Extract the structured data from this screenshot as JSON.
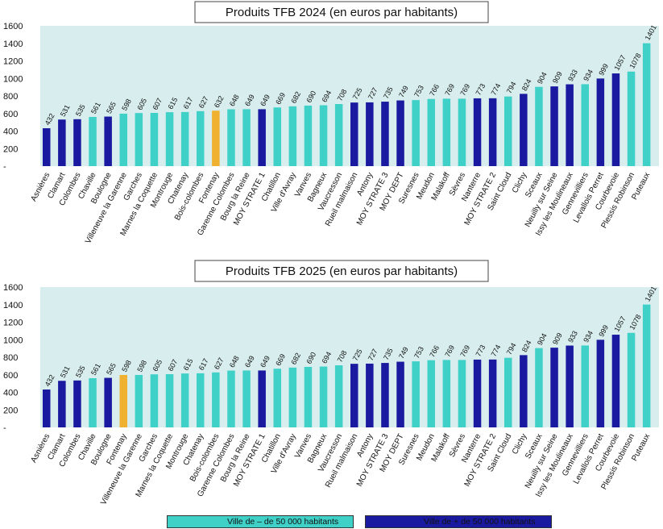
{
  "colors": {
    "small_city": "#3fd0c8",
    "large_city": "#1a1aa0",
    "highlight": "#f0b030",
    "plot_background": "#d8eeee"
  },
  "legend": {
    "small_label": "Ville de – de 50 000 habitants",
    "large_label": "Ville de + de 50 000 habitants"
  },
  "chart_data": [
    {
      "type": "bar",
      "title": "Produits TFB 2024 (en euros par habitants)",
      "ylim": [
        0,
        1600
      ],
      "yticks": [
        "-",
        "200",
        "400",
        "600",
        "800",
        "1000",
        "1200",
        "1400",
        "1600"
      ],
      "grid": false,
      "categories": [
        "Asnières",
        "Clamart",
        "Colombes",
        "Chaville",
        "Boulogne",
        "Villeneuve la Garenne",
        "Garches",
        "Marnes la Coquette",
        "Montrouge",
        "Chatenay",
        "Bois-colombes",
        "Fontenay",
        "Garenne Colombes",
        "Bourg la Reine",
        "MOY STRATE 1",
        "Chatillon",
        "Ville d'Avray",
        "Vanves",
        "Bagneux",
        "Vaucresson",
        "Rueil malmaison",
        "Antony",
        "MOY STRATE 3",
        "MOY DEPT",
        "Suresnes",
        "Meudon",
        "Malakoff",
        "Sèvres",
        "Nanterre",
        "MOY STRATE 2",
        "Saint Cloud",
        "Clichy",
        "Sceaux",
        "Neuilly sur Seine",
        "Issy les Moulineaux",
        "Gennevilliers",
        "Levallois Perret",
        "Courbevoie",
        "Plessis Robinson",
        "Puteaux"
      ],
      "values": [
        432,
        531,
        535,
        561,
        565,
        598,
        605,
        607,
        615,
        617,
        627,
        632,
        648,
        649,
        649,
        669,
        682,
        690,
        694,
        708,
        725,
        727,
        735,
        749,
        753,
        766,
        769,
        769,
        773,
        774,
        794,
        824,
        904,
        909,
        933,
        934,
        999,
        1057,
        1078,
        1401
      ],
      "groups": [
        "large",
        "large",
        "large",
        "small",
        "large",
        "small",
        "small",
        "small",
        "small",
        "small",
        "small",
        "highlight",
        "small",
        "small",
        "large",
        "small",
        "small",
        "small",
        "small",
        "small",
        "large",
        "large",
        "large",
        "large",
        "small",
        "small",
        "small",
        "small",
        "large",
        "large",
        "small",
        "large",
        "small",
        "large",
        "large",
        "small",
        "large",
        "large",
        "small",
        "small"
      ]
    },
    {
      "type": "bar",
      "title": "Produits TFB 2025 (en euros par habitants)",
      "ylim": [
        0,
        1600
      ],
      "yticks": [
        "-",
        "200",
        "400",
        "600",
        "800",
        "1000",
        "1200",
        "1400",
        "1600"
      ],
      "grid": false,
      "categories": [
        "Asnières",
        "Clamart",
        "Colombes",
        "Chaville",
        "Boulogne",
        "Fontenay",
        "Villeneuve la Garenne",
        "Garches",
        "Marnes la Coquette",
        "Montrouge",
        "Chatenay",
        "Bois-colombes",
        "Garenne Colombes",
        "Bourg la Reine",
        "MOY STRATE 1",
        "Chatillon",
        "Ville d'Avray",
        "Vanves",
        "Bagneux",
        "Vaucresson",
        "Rueil malmaison",
        "Antony",
        "MOY STRATE 3",
        "MOY DEPT",
        "Suresnes",
        "Meudon",
        "Malakoff",
        "Sèvres",
        "Nanterre",
        "MOY STRATE 2",
        "Saint Cloud",
        "Clichy",
        "Sceaux",
        "Neuilly sur Seine",
        "Issy les Moulineaux",
        "Gennevilliers",
        "Levallois Perret",
        "Courbevoie",
        "Plessis Robinson",
        "Puteaux"
      ],
      "values": [
        432,
        531,
        535,
        561,
        565,
        598,
        598,
        605,
        607,
        615,
        617,
        627,
        648,
        649,
        649,
        669,
        682,
        690,
        694,
        708,
        725,
        727,
        735,
        749,
        753,
        766,
        769,
        769,
        773,
        774,
        794,
        824,
        904,
        909,
        933,
        934,
        999,
        1057,
        1078,
        1401
      ],
      "groups": [
        "large",
        "large",
        "large",
        "small",
        "large",
        "highlight",
        "small",
        "small",
        "small",
        "small",
        "small",
        "small",
        "small",
        "small",
        "large",
        "small",
        "small",
        "small",
        "small",
        "small",
        "large",
        "large",
        "large",
        "large",
        "small",
        "small",
        "small",
        "small",
        "large",
        "large",
        "small",
        "large",
        "small",
        "large",
        "large",
        "small",
        "large",
        "large",
        "small",
        "small"
      ]
    }
  ]
}
